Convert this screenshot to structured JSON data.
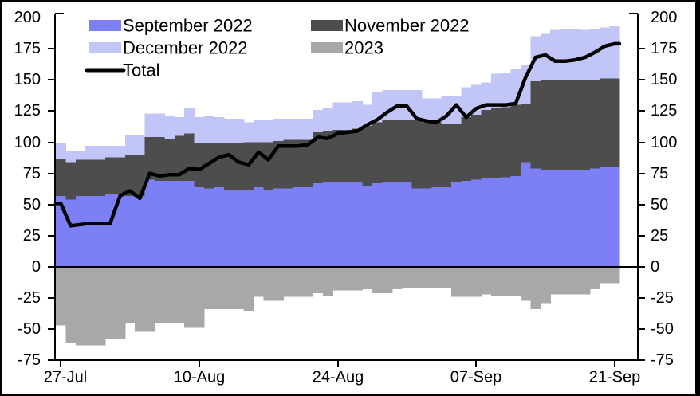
{
  "chart_data": {
    "type": "bar",
    "subtype": "stacked-bar-with-line-overlay",
    "title": "",
    "n_points": 57,
    "x_axis": {
      "tick_labels": [
        "27-Jul",
        "10-Aug",
        "24-Aug",
        "07-Sep",
        "21-Sep"
      ],
      "tick_indices": [
        0,
        14,
        28,
        42,
        56
      ]
    },
    "y_axis": {
      "ticks": [
        200,
        175,
        150,
        125,
        100,
        75,
        50,
        25,
        0,
        -25,
        -50,
        -75
      ],
      "ylim": [
        -75,
        200
      ],
      "sides": "both-left-and-right",
      "grid": false,
      "zero_baseline": true
    },
    "legend": {
      "position": "top-left-two-columns",
      "entries": [
        "September  2022",
        "November 2022",
        "December 2022",
        "2023",
        "Total"
      ]
    },
    "series": [
      {
        "name": "September  2022",
        "kind": "bar-stack-positive",
        "color": "#7c80f4",
        "values": [
          57,
          54,
          57,
          57,
          57,
          58,
          58,
          57,
          57,
          70,
          69,
          69,
          69,
          69,
          64,
          63,
          64,
          62,
          62,
          62,
          64,
          62,
          63,
          63,
          64,
          64,
          67,
          68,
          68,
          68,
          68,
          65,
          67,
          68,
          68,
          68,
          63,
          63,
          64,
          64,
          68,
          69,
          70,
          71,
          71,
          72,
          73,
          84,
          79,
          78,
          78,
          78,
          78,
          78,
          79,
          80,
          80
        ]
      },
      {
        "name": "November 2022",
        "kind": "bar-stack-positive",
        "color": "#4d4d4d",
        "values": [
          30,
          30,
          29,
          29,
          29,
          30,
          30,
          33,
          33,
          34,
          35,
          34,
          36,
          38,
          35,
          36,
          35,
          37,
          37,
          38,
          36,
          38,
          38,
          39,
          38,
          38,
          41,
          41,
          42,
          42,
          43,
          48,
          49,
          50,
          50,
          50,
          55,
          53,
          52,
          51,
          47,
          51,
          52,
          55,
          56,
          56,
          57,
          47,
          70,
          72,
          72,
          72,
          72,
          72,
          71,
          71,
          71
        ]
      },
      {
        "name": "December 2022",
        "kind": "bar-stack-positive",
        "color": "#c1c5f7",
        "values": [
          12,
          9,
          7,
          11,
          11,
          9,
          9,
          16,
          16,
          19,
          19,
          18,
          15,
          20,
          21,
          22,
          21,
          20,
          20,
          16,
          18,
          18,
          18,
          17,
          17,
          17,
          18,
          18,
          22,
          22,
          22,
          17,
          24,
          24,
          24,
          24,
          24,
          19,
          19,
          22,
          22,
          24,
          24,
          22,
          28,
          28,
          29,
          31,
          36,
          37,
          40,
          41,
          41,
          40,
          41,
          41,
          42
        ]
      },
      {
        "name": "2023",
        "kind": "bar-negative",
        "color": "#a8a8a8",
        "values": [
          -47,
          -61,
          -63,
          -63,
          -63,
          -58,
          -58,
          -45,
          -52,
          -52,
          -45,
          -45,
          -45,
          -49,
          -49,
          -34,
          -34,
          -34,
          -34,
          -35,
          -24,
          -27,
          -27,
          -24,
          -24,
          -24,
          -21,
          -23,
          -19,
          -19,
          -19,
          -18,
          -21,
          -21,
          -18,
          -17,
          -17,
          -17,
          -17,
          -17,
          -24,
          -24,
          -24,
          -22,
          -23,
          -23,
          -23,
          -27,
          -34,
          -29,
          -22,
          -22,
          -22,
          -22,
          -18,
          -13,
          -13
        ]
      },
      {
        "name": "Total",
        "kind": "line",
        "color": "#000000",
        "values": [
          51,
          33,
          34,
          35,
          35,
          35,
          57,
          61,
          55,
          75,
          73,
          74,
          74,
          79,
          78,
          83,
          88,
          90,
          84,
          82,
          92,
          86,
          97,
          97,
          97,
          98,
          104,
          103,
          107,
          108,
          109,
          114,
          118,
          124,
          129,
          129,
          119,
          117,
          116,
          121,
          130,
          120,
          127,
          130,
          130,
          130,
          131,
          152,
          168,
          170,
          165,
          165,
          166,
          168,
          172,
          177,
          179
        ]
      }
    ]
  }
}
